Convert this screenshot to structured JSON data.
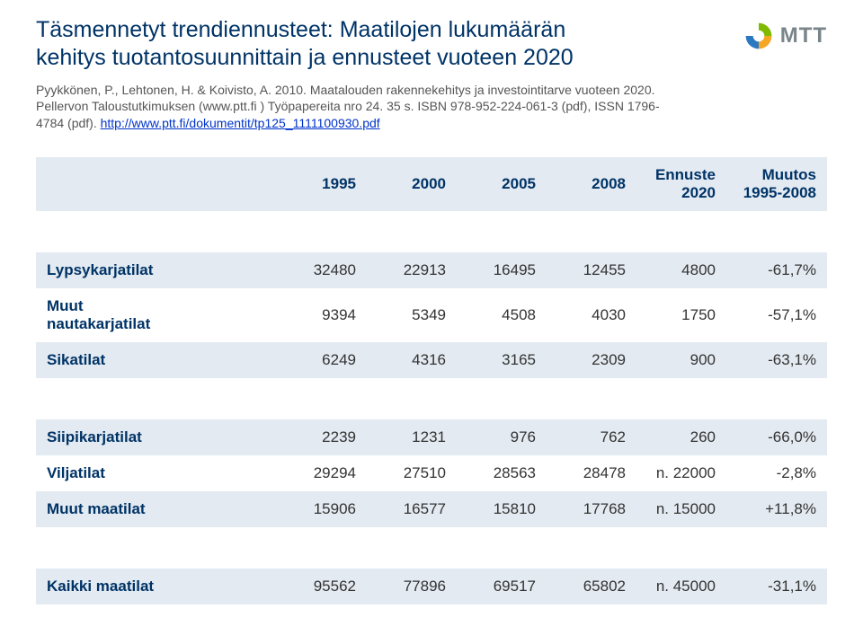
{
  "header": {
    "title_line1": "Täsmennetyt trendiennusteet: Maatilojen lukumäärän",
    "title_line2": "kehitys tuotantosuunnittain ja ennusteet  vuoteen 2020",
    "logo_text": "MTT",
    "logo_colors": {
      "green": "#7fba00",
      "orange": "#f5a623",
      "blue": "#2a78c2"
    }
  },
  "citation": {
    "text_before_link": "Pyykkönen, P., Lehtonen, H. & Koivisto, A. 2010. Maatalouden rakennekehitys ja investointitarve vuoteen 2020. Pellervon Taloustutkimuksen (www.ptt.fi ) Työpapereita nro 24. 35 s. ISBN 978-952-224-061-3 (pdf), ISSN 1796-4784 (pdf). ",
    "link_text": "http://www.ptt.fi/dokumentit/tp125_1111100930.pdf"
  },
  "table": {
    "columns": [
      "",
      "1995",
      "2000",
      "2005",
      "2008",
      "Ennuste 2020",
      "Muutos 1995-2008"
    ],
    "col_align": [
      "left",
      "right",
      "right",
      "right",
      "right",
      "right",
      "right"
    ],
    "header_bg": "#e3eaf1",
    "header_color": "#003366",
    "zebra_bg": "#e3eaf1",
    "label_color": "#003366",
    "cell_fontsize": 17,
    "rows": [
      {
        "label": "Lypsykarjatilat",
        "cells": [
          "32480",
          "22913",
          "16495",
          "12455",
          "4800",
          "-61,7%"
        ],
        "zebra": true
      },
      {
        "label": "Muut nautakarjatilat",
        "cells": [
          "9394",
          "5349",
          "4508",
          "4030",
          "1750",
          "-57,1%"
        ],
        "zebra": false
      },
      {
        "label": "Sikatilat",
        "cells": [
          "6249",
          "4316",
          "3165",
          "2309",
          "900",
          "-63,1%"
        ],
        "zebra": true
      },
      {
        "label": "Siipikarjatilat",
        "cells": [
          "2239",
          "1231",
          "976",
          "762",
          "260",
          "-66,0%"
        ],
        "zebra": true
      },
      {
        "label": "Viljatilat",
        "cells": [
          "29294",
          "27510",
          "28563",
          "28478",
          "n. 22000",
          "-2,8%"
        ],
        "zebra": false
      },
      {
        "label": "Muut maatilat",
        "cells": [
          "15906",
          "16577",
          "15810",
          "17768",
          "n. 15000",
          "+11,8%"
        ],
        "zebra": true
      },
      {
        "label": "Kaikki maatilat",
        "cells": [
          "95562",
          "77896",
          "69517",
          "65802",
          "n. 45000",
          "-31,1%"
        ],
        "zebra": true
      }
    ],
    "gaps_after_index": [
      2,
      5
    ]
  }
}
